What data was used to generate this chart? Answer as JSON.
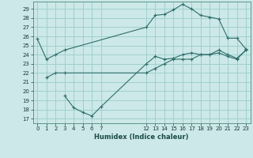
{
  "title": "",
  "xlabel": "Humidex (Indice chaleur)",
  "bg_color": "#cce8e8",
  "grid_color": "#99cccc",
  "line_color": "#2e6e6a",
  "xlim": [
    -0.5,
    23.5
  ],
  "ylim": [
    16.5,
    29.8
  ],
  "yticks": [
    17,
    18,
    19,
    20,
    21,
    22,
    23,
    24,
    25,
    26,
    27,
    28,
    29
  ],
  "xticks": [
    0,
    1,
    2,
    3,
    4,
    5,
    6,
    7,
    12,
    13,
    14,
    15,
    16,
    17,
    18,
    19,
    20,
    21,
    22,
    23
  ],
  "line1_x": [
    0,
    1,
    2,
    3,
    12,
    13,
    14,
    15,
    16,
    17,
    18,
    19,
    20,
    21,
    22,
    23
  ],
  "line1_y": [
    25.7,
    23.5,
    24.0,
    24.5,
    27.0,
    28.3,
    28.4,
    28.9,
    29.5,
    29.0,
    28.3,
    28.1,
    27.9,
    25.8,
    25.8,
    24.6
  ],
  "line2_x": [
    1,
    2,
    3,
    12,
    13,
    14,
    15,
    16,
    17,
    18,
    19,
    20,
    21,
    22,
    23
  ],
  "line2_y": [
    21.5,
    22.0,
    22.0,
    22.0,
    22.5,
    23.0,
    23.5,
    23.5,
    23.5,
    24.0,
    24.0,
    24.2,
    23.8,
    23.5,
    24.5
  ],
  "line3_x": [
    3,
    4,
    5,
    6,
    7,
    12,
    13,
    14,
    15,
    16,
    17,
    18,
    19,
    20,
    21,
    22,
    23
  ],
  "line3_y": [
    19.5,
    18.2,
    17.7,
    17.3,
    18.3,
    23.0,
    23.8,
    23.5,
    23.6,
    24.0,
    24.2,
    24.0,
    24.0,
    24.5,
    24.0,
    23.6,
    24.5
  ]
}
